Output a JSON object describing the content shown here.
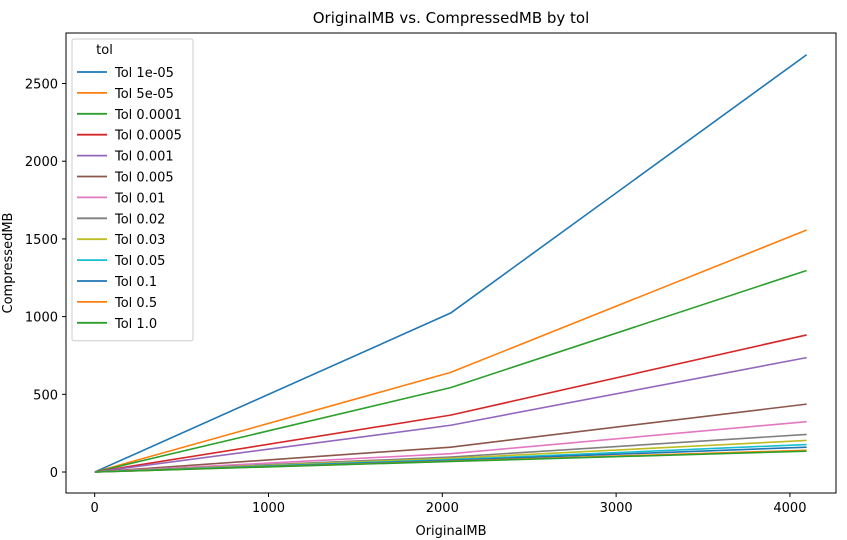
{
  "chart_data": {
    "type": "line",
    "title": "OriginalMB vs. CompressedMB by tol",
    "xlabel": "OriginalMB",
    "ylabel": "CompressedMB",
    "xlim": [
      -165,
      4265
    ],
    "ylim": [
      -135,
      2825
    ],
    "xticks": [
      0,
      1000,
      2000,
      3000,
      4000
    ],
    "yticks": [
      0,
      500,
      1000,
      1500,
      2000,
      2500
    ],
    "grid": false,
    "legend": {
      "title": "tol",
      "placement": "top-left"
    },
    "x": [
      1,
      2048,
      4096
    ],
    "series": [
      {
        "name": "Tol 1e-05",
        "color": "#1f77b4",
        "values": [
          0.6,
          1023,
          2685
        ]
      },
      {
        "name": "Tol 5e-05",
        "color": "#ff7f0e",
        "values": [
          0.4,
          641,
          1557
        ]
      },
      {
        "name": "Tol 0.0001",
        "color": "#2ca02c",
        "values": [
          0.3,
          543,
          1297
        ]
      },
      {
        "name": "Tol 0.0005",
        "color": "#d62728",
        "values": [
          0.2,
          366,
          882
        ]
      },
      {
        "name": "Tol 0.001",
        "color": "#9467bd",
        "values": [
          0.2,
          301,
          736
        ]
      },
      {
        "name": "Tol 0.005",
        "color": "#8c564b",
        "values": [
          0.1,
          160,
          437
        ]
      },
      {
        "name": "Tol 0.01",
        "color": "#e377c2",
        "values": [
          0.1,
          118,
          324
        ]
      },
      {
        "name": "Tol 0.02",
        "color": "#7f7f7f",
        "values": [
          0.1,
          96,
          242
        ]
      },
      {
        "name": "Tol 0.03",
        "color": "#bcbd22",
        "values": [
          0.1,
          88,
          203
        ]
      },
      {
        "name": "Tol 0.05",
        "color": "#17becf",
        "values": [
          0.1,
          80,
          177
        ]
      },
      {
        "name": "Tol 0.1",
        "color": "#1f77b4",
        "values": [
          0.1,
          75,
          160
        ]
      },
      {
        "name": "Tol 0.5",
        "color": "#ff7f0e",
        "values": [
          0.1,
          70,
          140
        ]
      },
      {
        "name": "Tol 1.0",
        "color": "#2ca02c",
        "values": [
          0.1,
          68,
          134
        ]
      }
    ]
  }
}
